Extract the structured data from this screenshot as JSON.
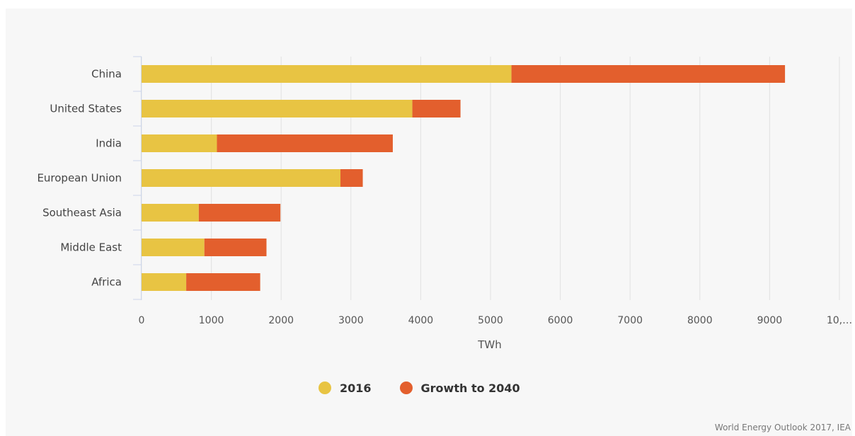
{
  "chart_data": {
    "type": "bar",
    "orientation": "horizontal",
    "stacked": true,
    "categories": [
      "China",
      "United States",
      "India",
      "European Union",
      "Southeast Asia",
      "Middle East",
      "Africa"
    ],
    "series": [
      {
        "name": "2016",
        "color": "#e8c443",
        "values": [
          5300,
          3880,
          1080,
          2850,
          820,
          900,
          640
        ]
      },
      {
        "name": "Growth to 2040",
        "color": "#e35f2d",
        "values": [
          3920,
          690,
          2520,
          320,
          1170,
          890,
          1060
        ]
      }
    ],
    "xlabel": "TWh",
    "ylabel": "",
    "xlim": [
      0,
      10000
    ],
    "x_ticks": [
      "0",
      "1000",
      "2000",
      "3000",
      "4000",
      "5000",
      "6000",
      "7000",
      "8000",
      "9000",
      "10,…"
    ],
    "grid": "vertical",
    "legend": "bottom-center"
  },
  "source": "World Energy Outlook 2017, IEA"
}
